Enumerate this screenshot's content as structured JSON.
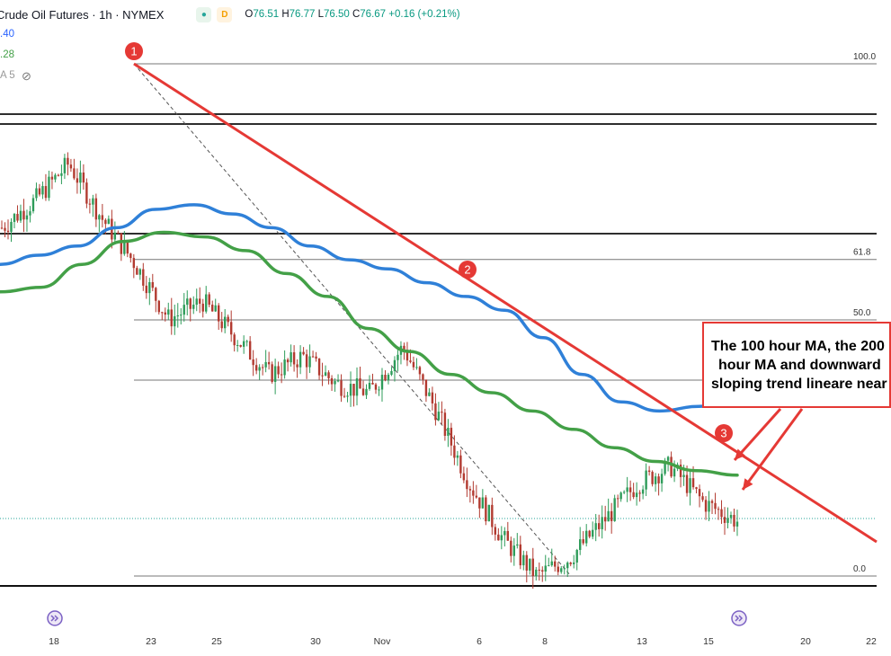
{
  "header": {
    "symbol_title": "Crude Oil Futures · 1h · NYMEX",
    "badge_dot": "●",
    "badge_d": "D",
    "ohlc": [
      {
        "label": "O",
        "value": "76.51"
      },
      {
        "label": "H",
        "value": "76.77"
      },
      {
        "label": "L",
        "value": "76.50"
      },
      {
        "label": "C",
        "value": "76.67"
      },
      {
        "label": "",
        "value": "+0.16 (+0.21%)"
      }
    ]
  },
  "indicators": [
    {
      "text": ".40",
      "color": "#2962ff"
    },
    {
      "text": ".28",
      "color": "#43a047"
    },
    {
      "text": "A 5",
      "color": "#999999"
    }
  ],
  "chart_data": {
    "type": "line",
    "xlabels": [
      "18",
      "23",
      "25",
      "30",
      "Nov",
      "6",
      "8",
      "13",
      "15",
      "20",
      "22"
    ],
    "fib_levels": [
      {
        "label": "100.0",
        "value": 100
      },
      {
        "label": "61.8",
        "value": 61.8
      },
      {
        "label": "50.0",
        "value": 50
      },
      {
        "label": "0.0",
        "value": 0
      }
    ],
    "markers": [
      "1",
      "2",
      "3"
    ],
    "series": [
      {
        "name": "100 hour MA",
        "color": "#2f80d8",
        "values": [
          68,
          69,
          70,
          72,
          74,
          74.5,
          73.5,
          72,
          70,
          68.5,
          67.5,
          66,
          64.5,
          63,
          60,
          56,
          53,
          52,
          52.5,
          53.5
        ]
      },
      {
        "name": "200 hour MA",
        "color": "#43a047",
        "values": [
          65,
          65.5,
          68,
          70.5,
          71.5,
          71,
          69.5,
          67,
          64.5,
          61,
          58.5,
          56,
          54,
          52,
          50,
          48,
          46.5,
          45.5,
          45
        ]
      }
    ],
    "price_path": [
      72,
      75,
      79,
      73,
      68,
      62,
      64,
      60,
      56,
      58,
      55,
      54,
      59,
      52,
      44,
      38,
      34,
      36,
      40,
      44,
      46,
      42,
      40
    ],
    "callout": [
      "The 100 hour MA, the 200",
      "hour MA  and downward",
      "sloping trend lineare near"
    ]
  }
}
